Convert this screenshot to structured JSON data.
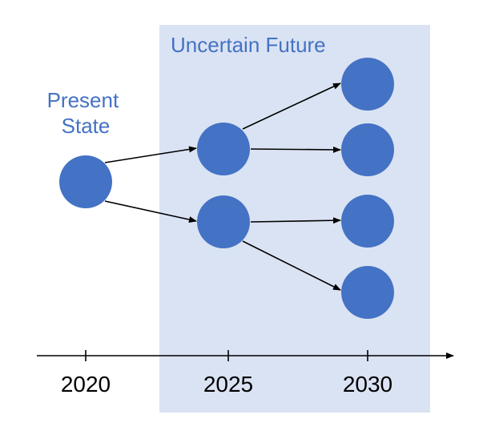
{
  "colors": {
    "node_fill": "#4472c4",
    "region_fill": "#dae3f3",
    "label_color": "#4472c4",
    "line_color": "#000000"
  },
  "region": {
    "label": "Uncertain Future"
  },
  "present": {
    "label_line1": "Present",
    "label_line2": "State"
  },
  "timeline": {
    "ticks": [
      "2020",
      "2025",
      "2030"
    ]
  },
  "nodes": [
    {
      "id": "present",
      "year": "2020"
    },
    {
      "id": "mid-upper",
      "year": "2025"
    },
    {
      "id": "mid-lower",
      "year": "2025"
    },
    {
      "id": "end-1",
      "year": "2030"
    },
    {
      "id": "end-2",
      "year": "2030"
    },
    {
      "id": "end-3",
      "year": "2030"
    },
    {
      "id": "end-4",
      "year": "2030"
    }
  ],
  "edges": [
    {
      "from": "present",
      "to": "mid-upper"
    },
    {
      "from": "present",
      "to": "mid-lower"
    },
    {
      "from": "mid-upper",
      "to": "end-1"
    },
    {
      "from": "mid-upper",
      "to": "end-2"
    },
    {
      "from": "mid-lower",
      "to": "end-3"
    },
    {
      "from": "mid-lower",
      "to": "end-4"
    }
  ]
}
